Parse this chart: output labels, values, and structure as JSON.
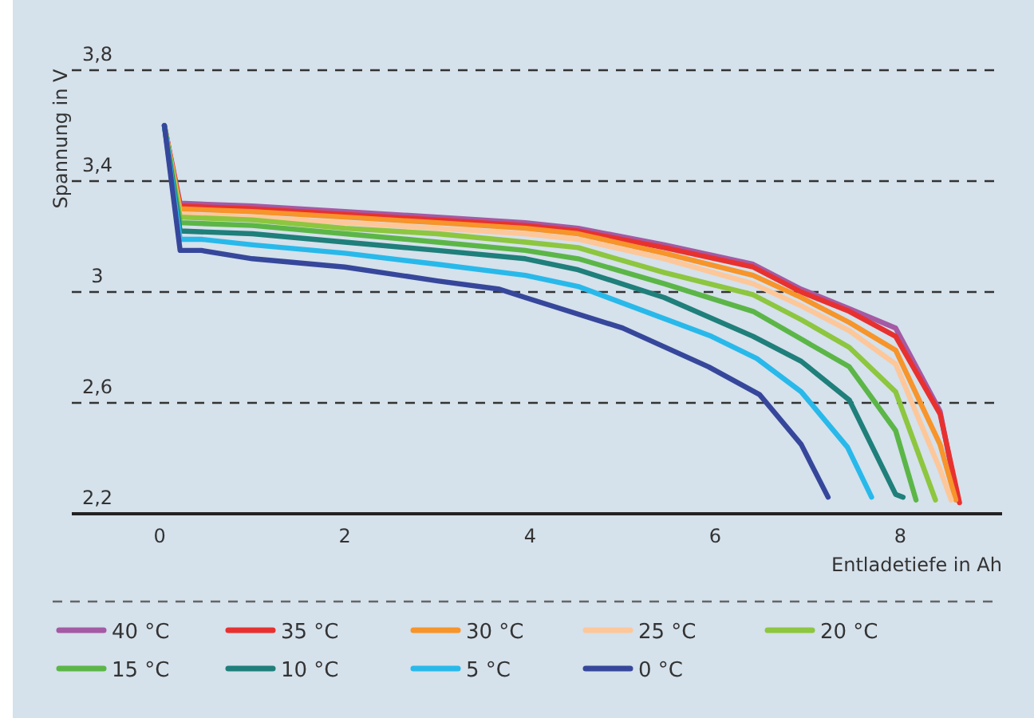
{
  "chart_data": {
    "type": "line",
    "xlabel": "Entladetiefe in Ah",
    "ylabel": "Spannung in V",
    "xlim": [
      -0.95,
      9.1
    ],
    "ylim": [
      2.2,
      3.8
    ],
    "xticks": [
      0,
      2,
      4,
      6,
      8
    ],
    "yticks": [
      {
        "value": 2.2,
        "label": "2,2"
      },
      {
        "value": 2.6,
        "label": "2,6"
      },
      3,
      {
        "value": 3.4,
        "label": "3,4"
      },
      {
        "value": 3.8,
        "label": "3,8"
      }
    ],
    "grid": "y",
    "legend": "bottom",
    "marker": "none",
    "line_style": "solid",
    "series": [
      {
        "name": "40 °C",
        "color": "#a45aa4",
        "x": [
          0.05,
          0.22,
          1,
          2,
          3,
          3.95,
          4.52,
          5.45,
          6.41,
          6.93,
          7.45,
          7.95,
          8.43,
          8.62
        ],
        "values": [
          3.6,
          3.32,
          3.31,
          3.29,
          3.27,
          3.25,
          3.23,
          3.17,
          3.1,
          3.01,
          2.94,
          2.87,
          2.57,
          2.25
        ]
      },
      {
        "name": "35 °C",
        "color": "#e8312f",
        "x": [
          0.05,
          0.22,
          1,
          2,
          3,
          3.95,
          4.52,
          5.45,
          6.41,
          6.93,
          7.45,
          7.95,
          8.43,
          8.64
        ],
        "values": [
          3.6,
          3.31,
          3.3,
          3.28,
          3.26,
          3.24,
          3.22,
          3.16,
          3.09,
          3,
          2.93,
          2.84,
          2.56,
          2.24
        ]
      },
      {
        "name": "30 °C",
        "color": "#f7942a",
        "x": [
          0.05,
          0.22,
          1,
          2,
          3,
          3.95,
          4.52,
          5.45,
          6.41,
          6.93,
          7.45,
          7.95,
          8.43,
          8.6
        ],
        "values": [
          3.6,
          3.3,
          3.29,
          3.27,
          3.25,
          3.23,
          3.21,
          3.14,
          3.06,
          2.98,
          2.89,
          2.79,
          2.45,
          2.25
        ]
      },
      {
        "name": "25 °C",
        "color": "#fdc79a",
        "x": [
          0.05,
          0.22,
          1,
          2,
          3,
          3.95,
          4.52,
          5.45,
          6.41,
          6.93,
          7.45,
          7.95,
          8.43,
          8.55
        ],
        "values": [
          3.6,
          3.28,
          3.27,
          3.25,
          3.23,
          3.21,
          3.19,
          3.12,
          3.03,
          2.95,
          2.86,
          2.74,
          2.36,
          2.25
        ]
      },
      {
        "name": "20 °C",
        "color": "#8dc63f",
        "x": [
          0.05,
          0.22,
          1,
          2,
          3,
          3.95,
          4.52,
          5.45,
          6.41,
          6.93,
          7.45,
          7.95,
          8.38
        ],
        "values": [
          3.6,
          3.27,
          3.26,
          3.23,
          3.21,
          3.18,
          3.16,
          3.07,
          2.99,
          2.9,
          2.8,
          2.64,
          2.25
        ]
      },
      {
        "name": "15 °C",
        "color": "#5bb647",
        "x": [
          0.05,
          0.22,
          1,
          2,
          3,
          3.95,
          4.52,
          5.45,
          6.41,
          6.93,
          7.45,
          7.95,
          8.17
        ],
        "values": [
          3.6,
          3.25,
          3.24,
          3.21,
          3.18,
          3.15,
          3.12,
          3.03,
          2.93,
          2.83,
          2.73,
          2.5,
          2.25
        ]
      },
      {
        "name": "10 °C",
        "color": "#1f7f7a",
        "x": [
          0.05,
          0.22,
          1,
          2,
          3,
          3.95,
          4.52,
          5.45,
          6.41,
          6.93,
          7.45,
          7.95,
          8.03
        ],
        "values": [
          3.6,
          3.22,
          3.21,
          3.18,
          3.15,
          3.12,
          3.08,
          2.98,
          2.84,
          2.75,
          2.61,
          2.27,
          2.26
        ]
      },
      {
        "name": "5 °C",
        "color": "#28b9ea",
        "x": [
          0.05,
          0.22,
          0.45,
          1,
          2,
          3,
          3.95,
          4.52,
          5.96,
          6.45,
          6.93,
          7.43,
          7.69
        ],
        "values": [
          3.6,
          3.19,
          3.19,
          3.17,
          3.14,
          3.1,
          3.06,
          3.02,
          2.84,
          2.76,
          2.64,
          2.44,
          2.26
        ]
      },
      {
        "name": "0 °C",
        "color": "#36479b",
        "x": [
          0.05,
          0.22,
          0.45,
          1,
          2,
          3,
          3.67,
          3.95,
          5,
          5.93,
          6.48,
          6.93,
          7.22
        ],
        "values": [
          3.6,
          3.15,
          3.15,
          3.12,
          3.09,
          3.04,
          3.01,
          2.98,
          2.87,
          2.73,
          2.63,
          2.45,
          2.26
        ]
      }
    ]
  }
}
